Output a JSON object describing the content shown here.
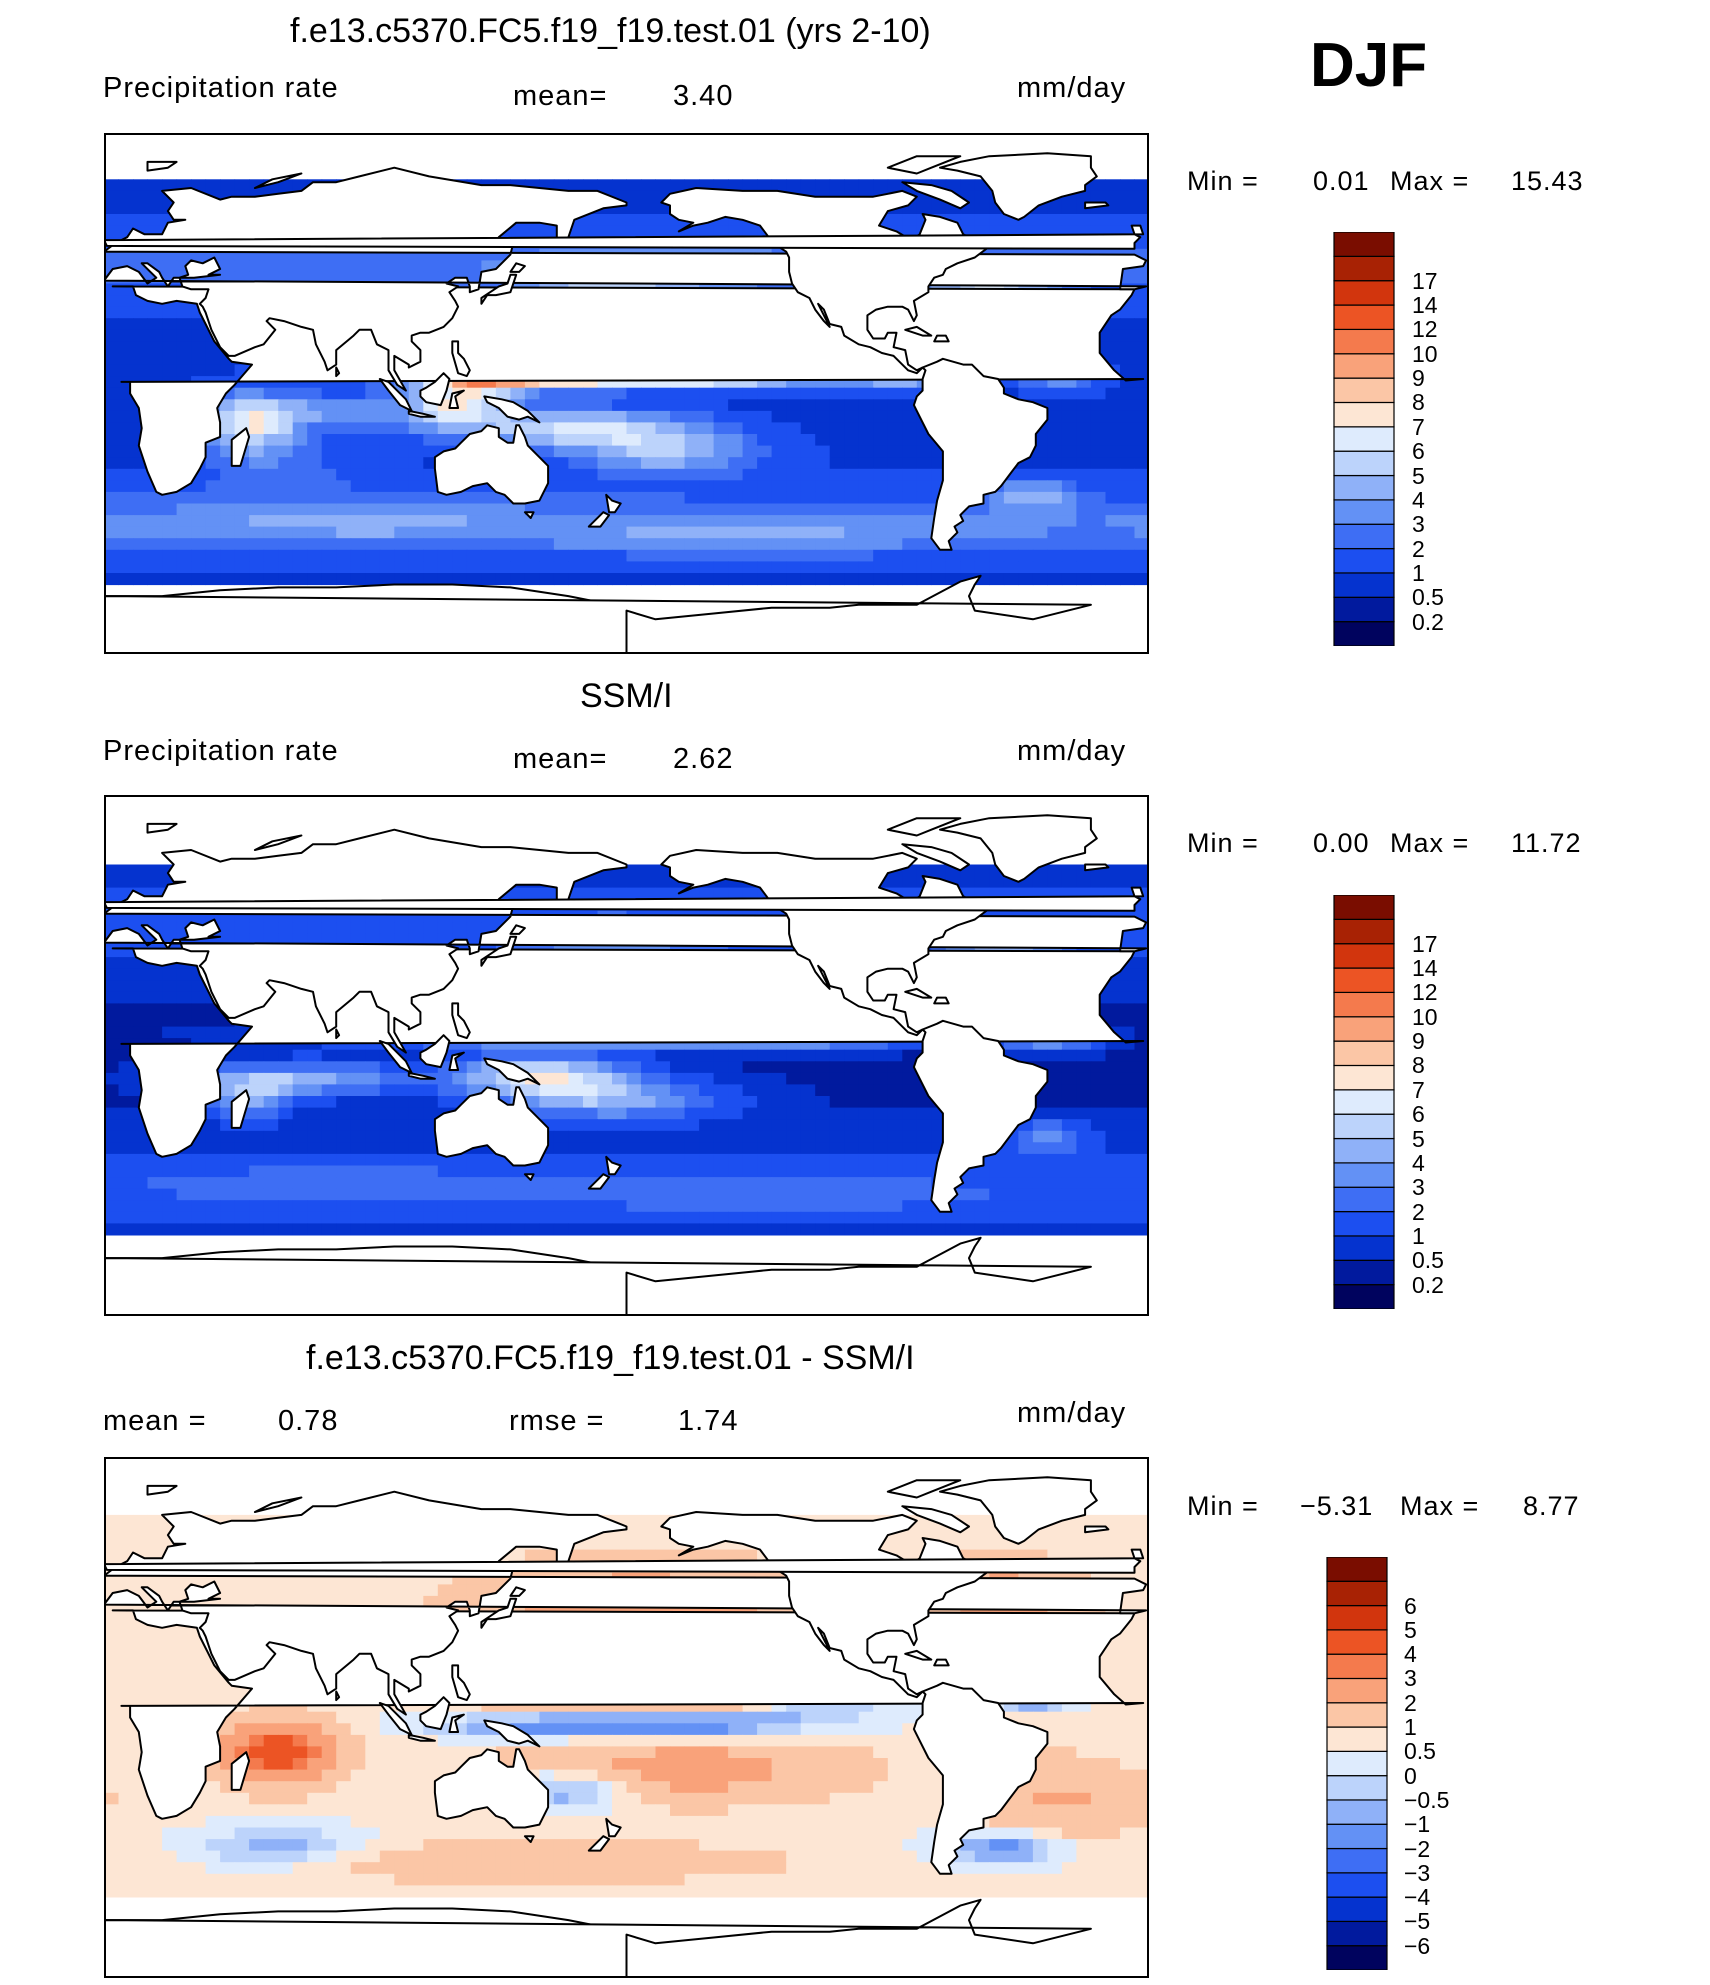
{
  "season": "DJF",
  "panels": [
    {
      "title": "f.e13.c5370.FC5.f19_f19.test.01 (yrs 2-10)",
      "left_label": "Precipitation rate",
      "center_label": "mean=",
      "center_value": "3.40",
      "units": "mm/day",
      "min_label": "Min =",
      "min_value": "0.01",
      "max_label": "Max =",
      "max_value": "15.43"
    },
    {
      "title": "SSM/I",
      "left_label": "Precipitation rate",
      "center_label": "mean=",
      "center_value": "2.62",
      "units": "mm/day",
      "min_label": "Min =",
      "min_value": "0.00",
      "max_label": "Max =",
      "max_value": "11.72"
    },
    {
      "title": "f.e13.c5370.FC5.f19_f19.test.01 - SSM/I",
      "left_label": "mean =",
      "left_value": "0.78",
      "center_label": "rmse =",
      "center_value": "1.74",
      "units": "mm/day",
      "min_label": "Min =",
      "min_value": "−5.31",
      "max_label": "Max =",
      "max_value": "8.77"
    }
  ],
  "chart_data": [
    {
      "type": "heatmap",
      "title": "f.e13.c5370.FC5.f19_f19.test.01 (yrs 2-10)",
      "variable": "Precipitation rate",
      "units": "mm/day",
      "mean": 3.4,
      "min": 0.01,
      "max": 15.43,
      "levels": [
        "0.2",
        "0.5",
        "1",
        "2",
        "3",
        "4",
        "5",
        "6",
        "7",
        "8",
        "9",
        "10",
        "12",
        "14",
        "17"
      ],
      "colors": [
        "#00035e",
        "#011a9e",
        "#0533cf",
        "#1c4ff0",
        "#3e6ef4",
        "#6391f5",
        "#8fb1f8",
        "#bcd3fb",
        "#deebfd",
        "#fde6d4",
        "#fbc6a6",
        "#f9a27a",
        "#f47a4d",
        "#ec5424",
        "#d2350d",
        "#a82204",
        "#7a0d00"
      ]
    },
    {
      "type": "heatmap",
      "title": "SSM/I",
      "variable": "Precipitation rate",
      "units": "mm/day",
      "mean": 2.62,
      "min": 0.0,
      "max": 11.72,
      "levels": [
        "0.2",
        "0.5",
        "1",
        "2",
        "3",
        "4",
        "5",
        "6",
        "7",
        "8",
        "9",
        "10",
        "12",
        "14",
        "17"
      ],
      "colors": [
        "#00035e",
        "#011a9e",
        "#0533cf",
        "#1c4ff0",
        "#3e6ef4",
        "#6391f5",
        "#8fb1f8",
        "#bcd3fb",
        "#deebfd",
        "#fde6d4",
        "#fbc6a6",
        "#f9a27a",
        "#f47a4d",
        "#ec5424",
        "#d2350d",
        "#a82204",
        "#7a0d00"
      ]
    },
    {
      "type": "heatmap",
      "title": "f.e13.c5370.FC5.f19_f19.test.01 - SSM/I",
      "units": "mm/day",
      "mean": 0.78,
      "rmse": 1.74,
      "min": -5.31,
      "max": 8.77,
      "levels": [
        "−6",
        "−5",
        "−4",
        "−3",
        "−2",
        "−1",
        "−0.5",
        "0",
        "0.5",
        "1",
        "2",
        "3",
        "4",
        "5",
        "6"
      ],
      "colors": [
        "#00035e",
        "#011a9e",
        "#0533cf",
        "#1c4ff0",
        "#3e6ef4",
        "#6391f5",
        "#8fb1f8",
        "#bcd3fb",
        "#deebfd",
        "#fde6d4",
        "#fbc6a6",
        "#f9a27a",
        "#f47a4d",
        "#ec5424",
        "#d2350d",
        "#a82204",
        "#7a0d00"
      ]
    }
  ]
}
